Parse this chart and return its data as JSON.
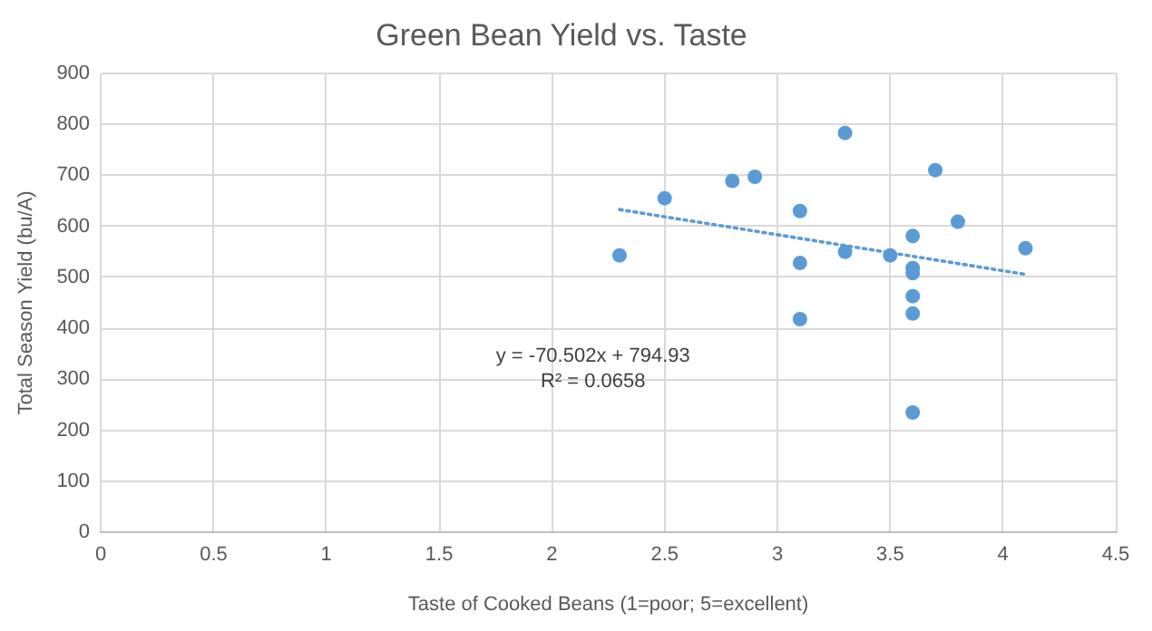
{
  "chart_data": {
    "type": "scatter",
    "title": "Green Bean Yield vs. Taste",
    "xlabel": "Taste of Cooked Beans (1=poor; 5=excellent)",
    "ylabel": "Total Season Yield (bu/A)",
    "xlim": [
      0,
      4.5
    ],
    "xticks": [
      0,
      0.5,
      1,
      1.5,
      2,
      2.5,
      3,
      3.5,
      4,
      4.5
    ],
    "ylim": [
      0,
      900
    ],
    "yticks": [
      0,
      100,
      200,
      300,
      400,
      500,
      600,
      700,
      800,
      900
    ],
    "grid": true,
    "legend": false,
    "marker": "circle",
    "annotations": [
      "y = -70.502x + 794.93",
      "R² = 0.0658"
    ],
    "series": [
      {
        "color": "#5b9bd5",
        "x": [
          2.3,
          2.5,
          2.8,
          2.9,
          3.1,
          3.1,
          3.1,
          3.3,
          3.3,
          3.5,
          3.6,
          3.6,
          3.6,
          3.6,
          3.6,
          3.6,
          3.7,
          3.8,
          4.1
        ],
        "values": [
          543,
          655,
          689,
          697,
          630,
          528,
          418,
          783,
          550,
          543,
          581,
          518,
          508,
          463,
          429,
          235,
          710,
          609,
          557
        ]
      },
      {
        "type": "line",
        "color": "#5b9bd5",
        "line_style": "dotted",
        "marker": "none",
        "x": [
          2.3,
          4.1
        ],
        "values": [
          632.8,
          505.9
        ]
      }
    ]
  }
}
